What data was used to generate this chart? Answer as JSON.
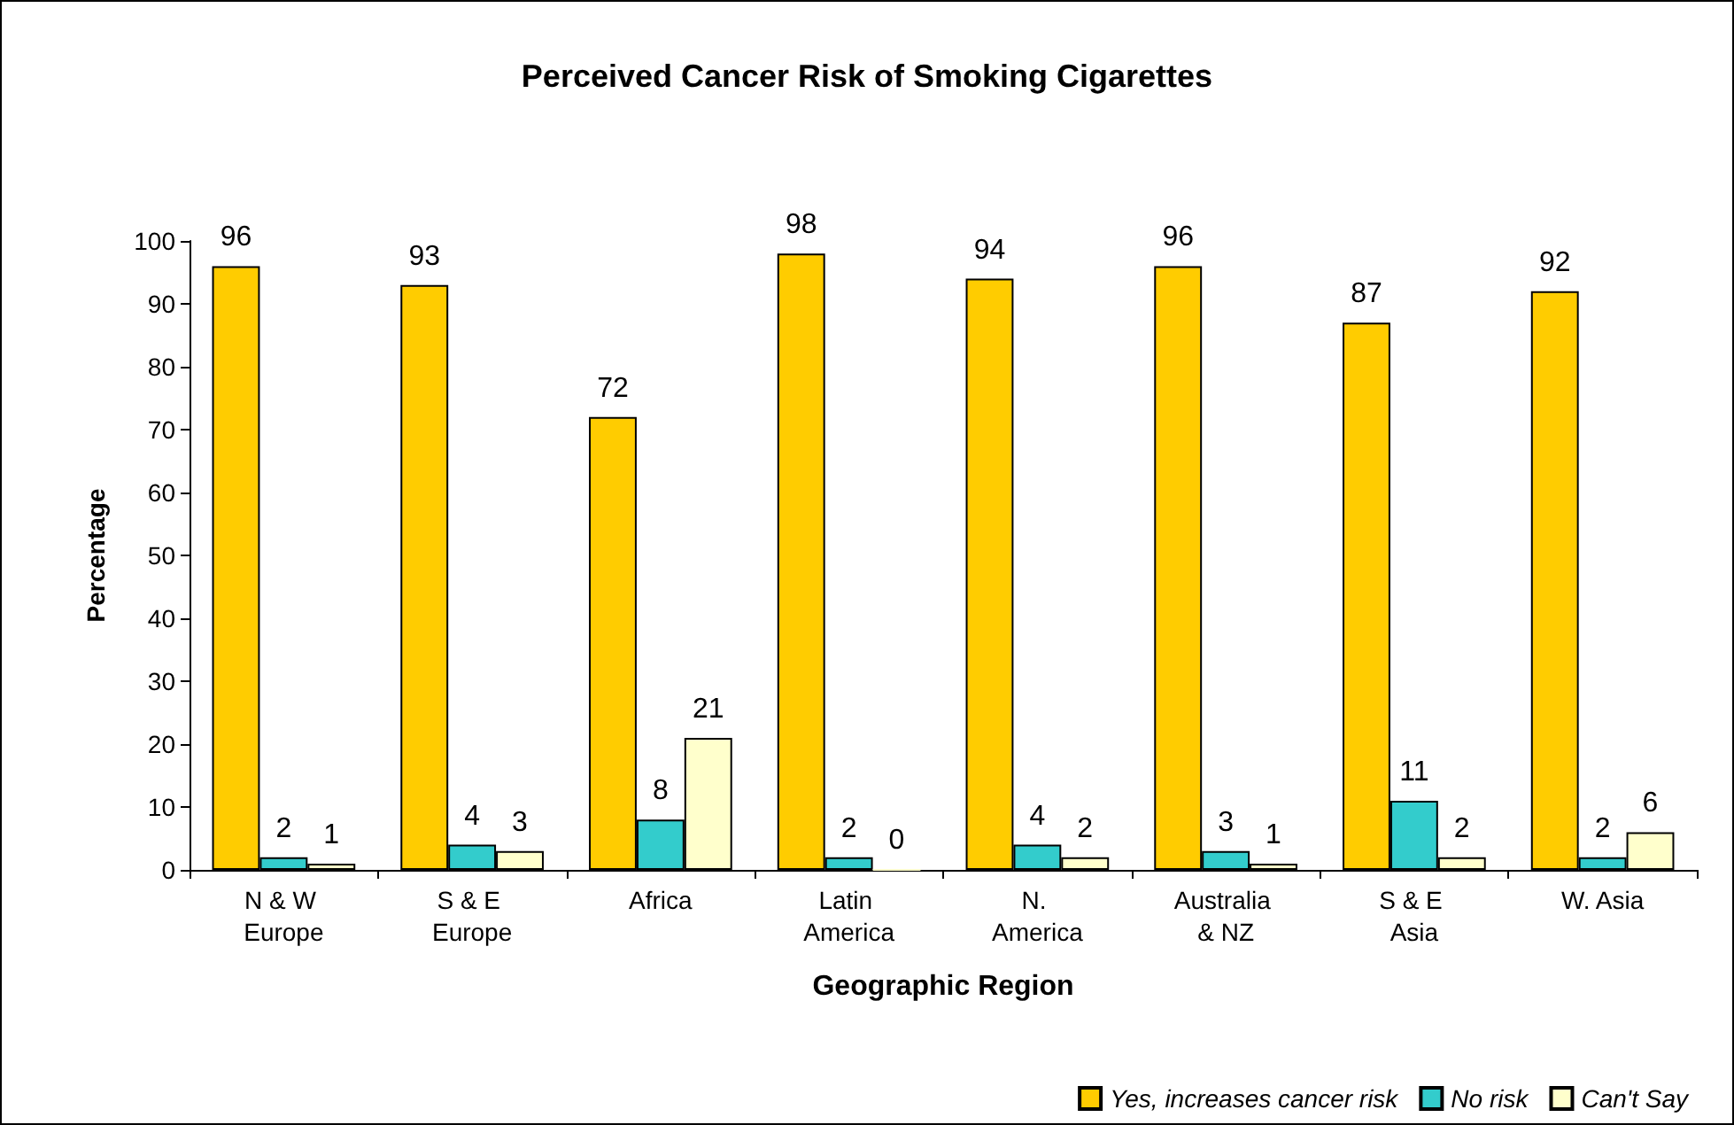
{
  "chart_data": {
    "type": "bar",
    "title": "Perceived Cancer Risk of Smoking Cigarettes",
    "xlabel": "Geographic Region",
    "ylabel": "Percentage",
    "categories": [
      "N & W Europe",
      "S & E Europe",
      "Africa",
      "Latin America",
      "N. America",
      "Australia & NZ",
      "S & E Asia",
      "W. Asia"
    ],
    "series": [
      {
        "name": "Yes, increases cancer risk",
        "color": "#ffcc00",
        "values": [
          96,
          93,
          72,
          98,
          94,
          96,
          87,
          92
        ]
      },
      {
        "name": "No risk",
        "color": "#33cccc",
        "values": [
          2,
          4,
          8,
          2,
          4,
          3,
          11,
          2
        ]
      },
      {
        "name": "Can't Say",
        "color": "#ffffcc",
        "values": [
          1,
          3,
          21,
          0,
          2,
          1,
          2,
          6
        ]
      }
    ],
    "ylim": [
      0,
      100
    ],
    "yticks": [
      0,
      10,
      20,
      30,
      40,
      50,
      60,
      70,
      80,
      90,
      100
    ],
    "grid": false,
    "legend": "bottom right",
    "data_labels": true
  }
}
